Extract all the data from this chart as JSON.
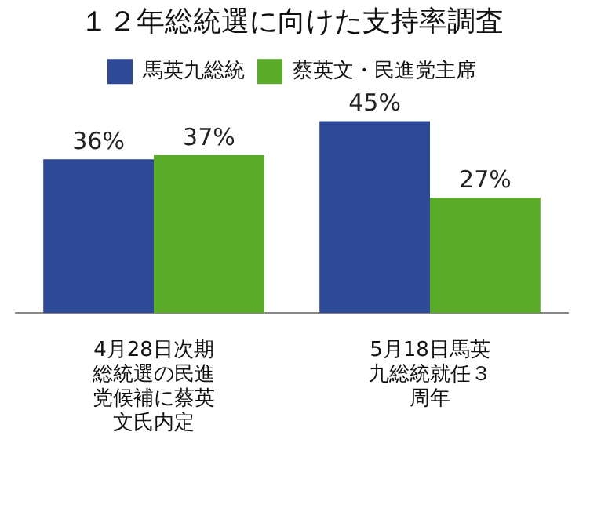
{
  "chart_data": {
    "type": "bar",
    "title": "１２年総統選に向けた支持率調査",
    "categories": [
      "4月28日次期総統選の民進党候補に蔡英文氏内定",
      "5月18日馬英九総統就任３周年"
    ],
    "series": [
      {
        "name": "馬英九総統",
        "color": "#2e4a96",
        "values": [
          36,
          45
        ],
        "value_labels": [
          "36%",
          "45%"
        ]
      },
      {
        "name": "蔡英文・民進党主席",
        "color": "#5aab2a",
        "values": [
          37,
          27
        ],
        "value_labels": [
          "37%",
          "27%"
        ]
      }
    ],
    "legend": "top",
    "grid": false
  }
}
